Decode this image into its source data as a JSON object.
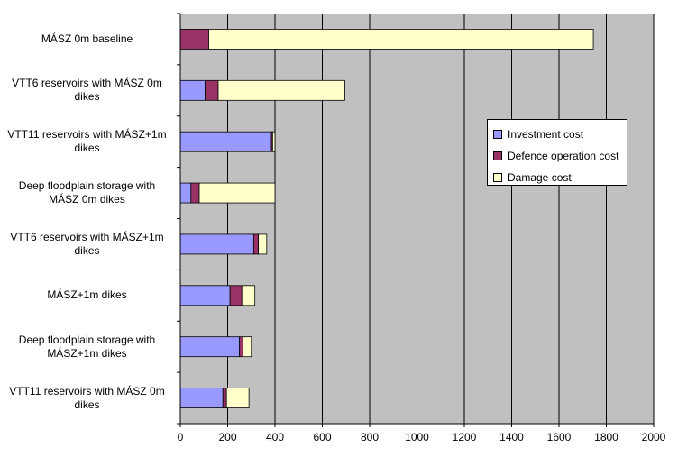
{
  "chart_data": {
    "type": "bar",
    "orientation": "horizontal",
    "stacked": true,
    "title": "",
    "xlabel": "",
    "ylabel": "",
    "xlim": [
      0,
      2000
    ],
    "xticks": [
      "0",
      "200",
      "400",
      "600",
      "800",
      "1000",
      "1200",
      "1400",
      "1600",
      "1800",
      "2000"
    ],
    "grid": true,
    "legend_position": "right",
    "categories": [
      "MÁSZ 0m baseline",
      "VTT6 reservoirs with MÁSZ 0m dikes",
      "VTT11 reservoirs with MÁSZ+1m dikes",
      "Deep floodplain storage with MÁSZ 0m dikes",
      "VTT6 reservoirs with MÁSZ+1m dikes",
      "MÁSZ+1m dikes",
      "Deep floodplain storage with MÁSZ+1m dikes",
      "VTT11 reservoirs with MÁSZ 0m dikes"
    ],
    "series": [
      {
        "name": "Investment cost",
        "color": "#9999ff",
        "values": [
          0,
          105,
          385,
          45,
          310,
          210,
          250,
          180
        ]
      },
      {
        "name": "Defence operation cost",
        "color": "#993366",
        "values": [
          120,
          55,
          5,
          35,
          20,
          50,
          15,
          15
        ]
      },
      {
        "name": "Damage cost",
        "color": "#ffffcc",
        "values": [
          1625,
          535,
          10,
          320,
          35,
          55,
          35,
          95
        ]
      }
    ]
  }
}
